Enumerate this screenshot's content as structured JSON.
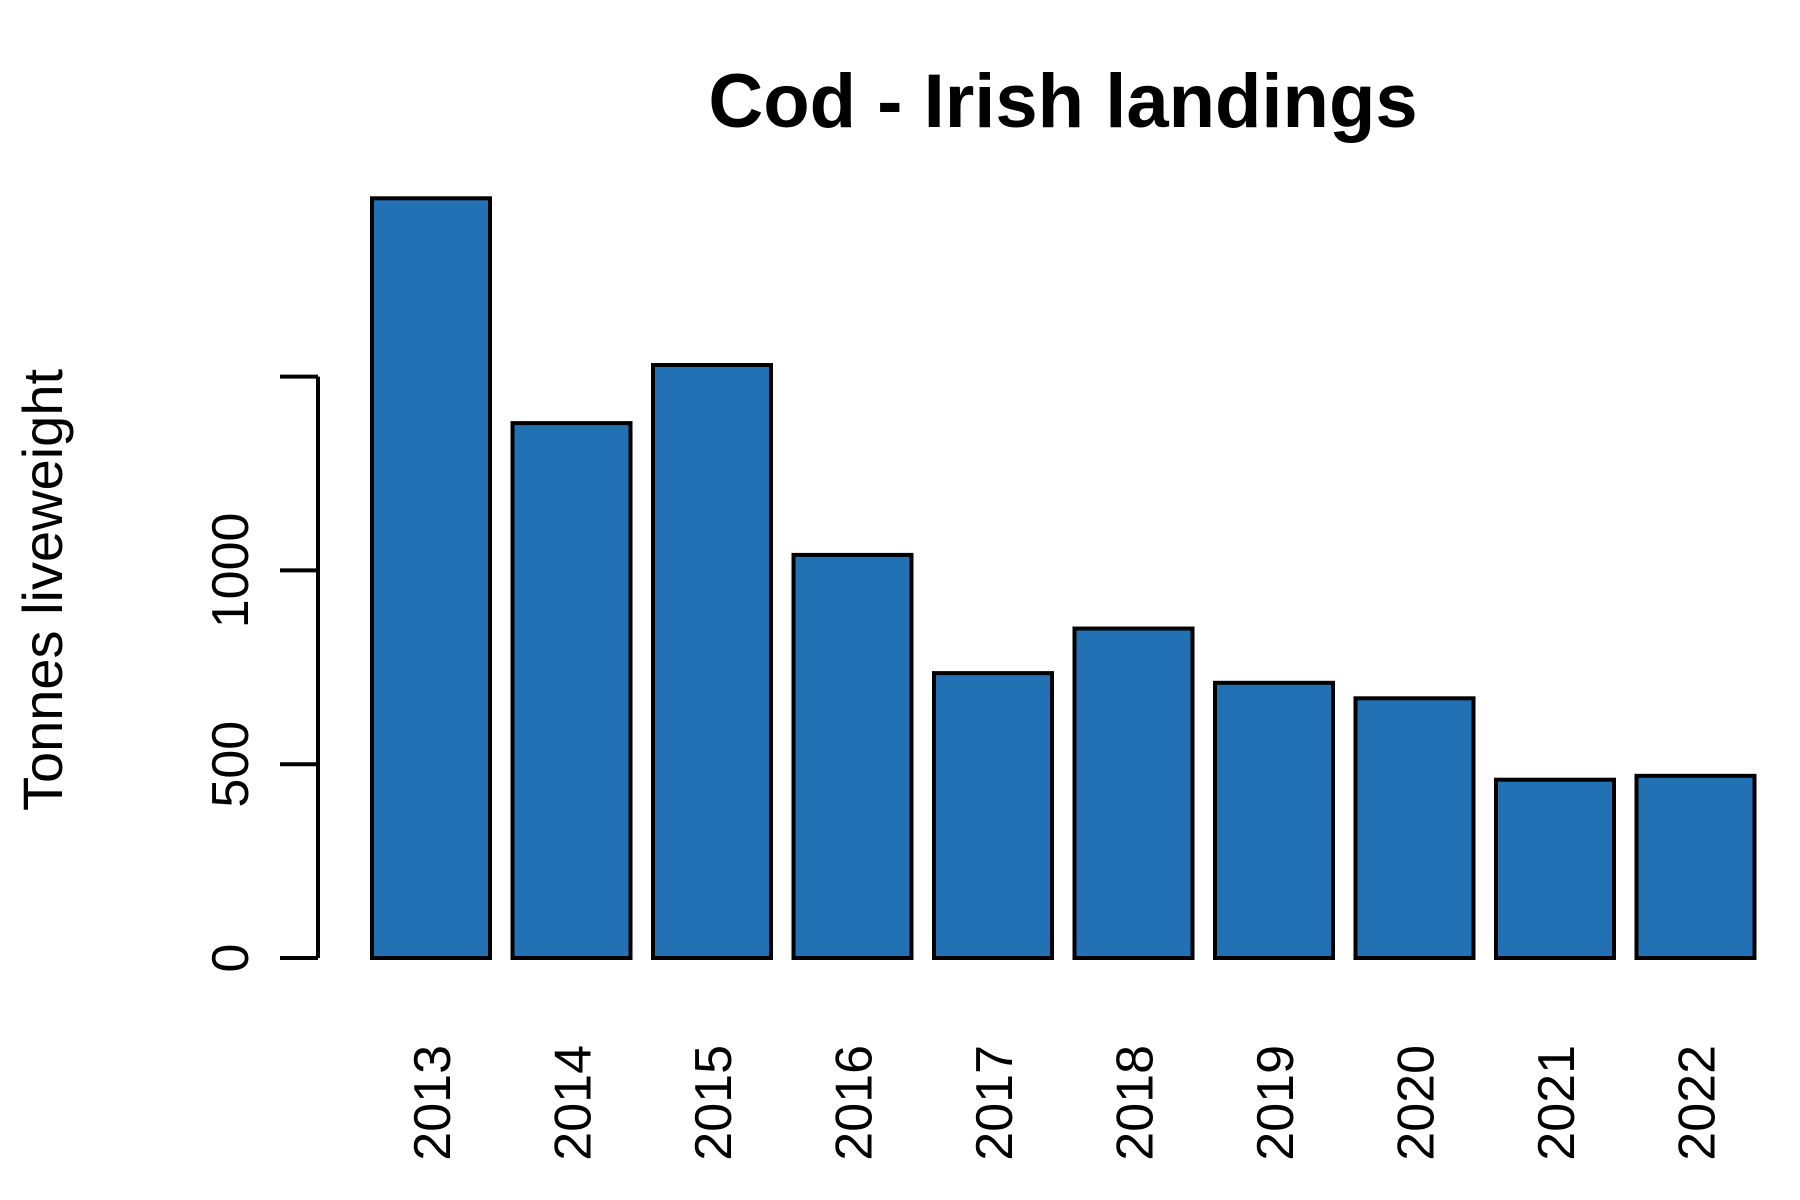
{
  "chart_data": {
    "type": "bar",
    "title": "Cod - Irish landings",
    "xlabel": "",
    "ylabel": "Tonnes liveweight",
    "categories": [
      "2013",
      "2014",
      "2015",
      "2016",
      "2017",
      "2018",
      "2019",
      "2020",
      "2021",
      "2022"
    ],
    "values": [
      1960,
      1380,
      1530,
      1040,
      735,
      850,
      710,
      670,
      460,
      470
    ],
    "yticks": [
      0,
      500,
      1000,
      1500
    ],
    "ytick_labels": [
      "0",
      "500",
      "1000",
      ""
    ],
    "ylim": [
      0,
      2000
    ],
    "bar_color": "#2271B5",
    "grid": false,
    "legend": "none"
  }
}
